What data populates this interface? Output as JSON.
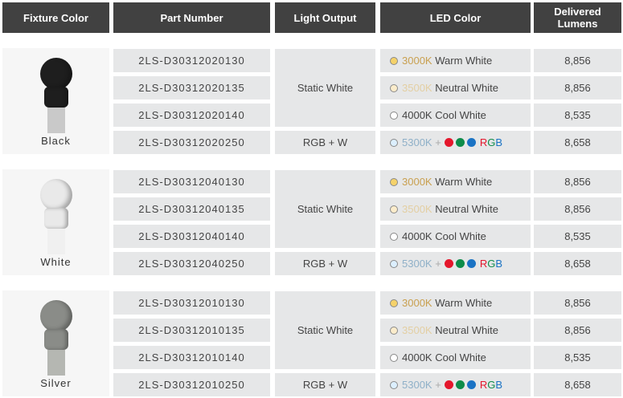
{
  "headers": [
    "Fixture Color",
    "Part Number",
    "Light Output",
    "LED Color",
    "Delivered Lumens"
  ],
  "colors": {
    "warm": "#f5d26a",
    "neutral": "#fbeccb",
    "cool": "#ffffff",
    "c5300": "#dcefff",
    "red": "#e4172c",
    "green": "#0e8c4a",
    "blue": "#1a73c4"
  },
  "groups": [
    {
      "fixture": "Black",
      "head": "#1e1e1e",
      "post": "#c9c9c9",
      "parts": [
        "2LS-D30312020130",
        "2LS-D30312020135",
        "2LS-D30312020140",
        "2LS-D30312020250"
      ],
      "outputs": [
        "Static White",
        "RGB + W"
      ],
      "lumens": [
        "8,856",
        "8,856",
        "8,535",
        "8,658"
      ]
    },
    {
      "fixture": "White",
      "head": "#e9e9e9",
      "post": "#f0f0f0",
      "parts": [
        "2LS-D30312040130",
        "2LS-D30312040135",
        "2LS-D30312040140",
        "2LS-D30312040250"
      ],
      "outputs": [
        "Static White",
        "RGB + W"
      ],
      "lumens": [
        "8,856",
        "8,856",
        "8,535",
        "8,658"
      ]
    },
    {
      "fixture": "Silver",
      "head": "#8a8c88",
      "post": "#b5b7b2",
      "parts": [
        "2LS-D30312010130",
        "2LS-D30312010135",
        "2LS-D30312010140",
        "2LS-D30312010250"
      ],
      "outputs": [
        "Static White",
        "RGB + W"
      ],
      "lumens": [
        "8,856",
        "8,856",
        "8,535",
        "8,658"
      ]
    }
  ],
  "led": {
    "warm_k": "3000K",
    "warm_t": "Warm White",
    "neutral_k": "3500K",
    "neutral_t": "Neutral White",
    "cool_k": "4000K",
    "cool_t": "Cool White",
    "rgb_k": "5300K",
    "plus": "+",
    "rgb_r": "R",
    "rgb_g": "G",
    "rgb_b": "B"
  }
}
